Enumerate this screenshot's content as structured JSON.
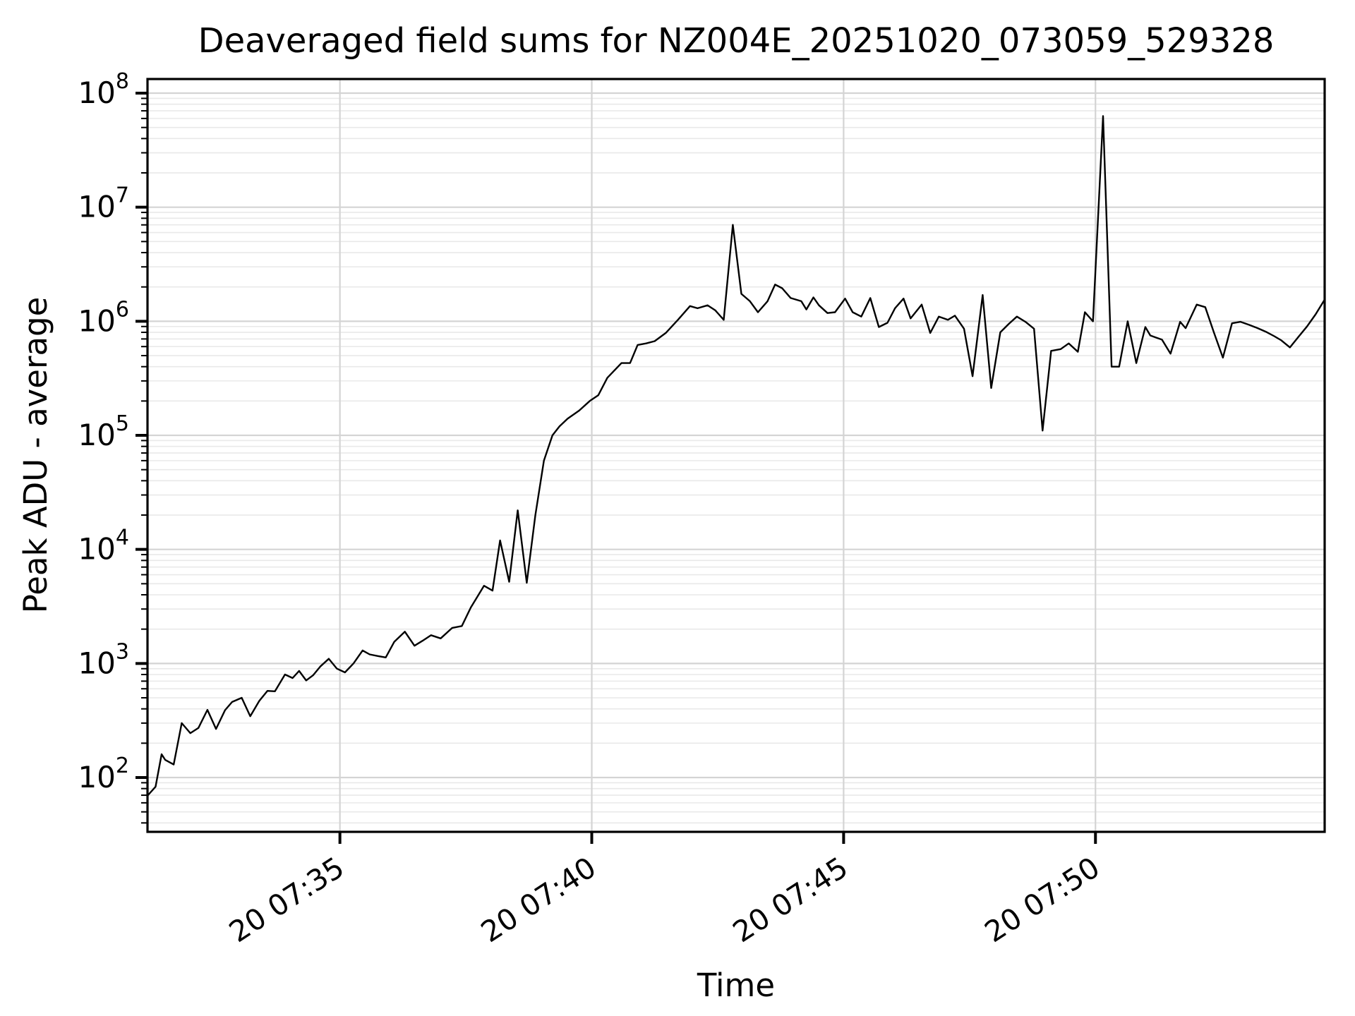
{
  "chart_data": {
    "type": "line",
    "title": "Deaveraged field sums for NZ004E_20251020_073059_529328",
    "xlabel": "Time",
    "ylabel": "Peak ADU - average",
    "legend_position": "none",
    "grid": {
      "major": true,
      "minor": true,
      "major_color": "#d4d4d4",
      "minor_color": "#e9e9e9"
    },
    "line_color": "#000000",
    "background_color": "#ffffff",
    "spine_color": "#000000",
    "x_axis": {
      "unit": "minutes after 07:30 (day 20)",
      "range": [
        1.18,
        24.55
      ],
      "ticks": [
        {
          "value": 5,
          "label": "20 07:35"
        },
        {
          "value": 10,
          "label": "20 07:40"
        },
        {
          "value": 15,
          "label": "20 07:45"
        },
        {
          "value": 20,
          "label": "20 07:50"
        }
      ]
    },
    "y_axis": {
      "scale": "log",
      "range": [
        33.4,
        133000000
      ],
      "ticks": [
        {
          "value": 100,
          "base": "10",
          "exp": "2"
        },
        {
          "value": 1000,
          "base": "10",
          "exp": "3"
        },
        {
          "value": 10000,
          "base": "10",
          "exp": "4"
        },
        {
          "value": 100000,
          "base": "10",
          "exp": "5"
        },
        {
          "value": 1000000,
          "base": "10",
          "exp": "6"
        },
        {
          "value": 10000000,
          "base": "10",
          "exp": "7"
        },
        {
          "value": 100000000,
          "base": "10",
          "exp": "8"
        }
      ]
    },
    "series": [
      {
        "name": "field sums",
        "points": [
          [
            1.19,
            70
          ],
          [
            1.34,
            83
          ],
          [
            1.46,
            160
          ],
          [
            1.53,
            143
          ],
          [
            1.7,
            130
          ],
          [
            1.86,
            300
          ],
          [
            2.03,
            245
          ],
          [
            2.19,
            272
          ],
          [
            2.37,
            392
          ],
          [
            2.54,
            267
          ],
          [
            2.72,
            390
          ],
          [
            2.86,
            460
          ],
          [
            3.05,
            500
          ],
          [
            3.22,
            345
          ],
          [
            3.4,
            470
          ],
          [
            3.56,
            575
          ],
          [
            3.71,
            570
          ],
          [
            3.91,
            800
          ],
          [
            4.06,
            745
          ],
          [
            4.19,
            860
          ],
          [
            4.33,
            710
          ],
          [
            4.47,
            790
          ],
          [
            4.61,
            940
          ],
          [
            4.78,
            1100
          ],
          [
            4.94,
            900
          ],
          [
            5.1,
            835
          ],
          [
            5.27,
            1000
          ],
          [
            5.45,
            1300
          ],
          [
            5.59,
            1200
          ],
          [
            5.76,
            1160
          ],
          [
            5.91,
            1130
          ],
          [
            6.08,
            1550
          ],
          [
            6.29,
            1900
          ],
          [
            6.48,
            1430
          ],
          [
            6.64,
            1580
          ],
          [
            6.81,
            1770
          ],
          [
            7.0,
            1660
          ],
          [
            7.23,
            2050
          ],
          [
            7.42,
            2130
          ],
          [
            7.6,
            3100
          ],
          [
            7.69,
            3600
          ],
          [
            7.86,
            4800
          ],
          [
            8.03,
            4350
          ],
          [
            8.18,
            12000
          ],
          [
            8.36,
            5200
          ],
          [
            8.53,
            22000
          ],
          [
            8.71,
            5100
          ],
          [
            8.88,
            20000
          ],
          [
            9.05,
            60000
          ],
          [
            9.22,
            100000
          ],
          [
            9.36,
            120000
          ],
          [
            9.52,
            140000
          ],
          [
            9.75,
            165000
          ],
          [
            9.96,
            200000
          ],
          [
            10.13,
            225000
          ],
          [
            10.31,
            320000
          ],
          [
            10.59,
            430000
          ],
          [
            10.76,
            430000
          ],
          [
            10.91,
            620000
          ],
          [
            11.08,
            640000
          ],
          [
            11.25,
            670000
          ],
          [
            11.47,
            790000
          ],
          [
            11.71,
            1030000
          ],
          [
            11.95,
            1360000
          ],
          [
            12.1,
            1300000
          ],
          [
            12.3,
            1380000
          ],
          [
            12.45,
            1250000
          ],
          [
            12.62,
            1030000
          ],
          [
            12.8,
            7000000
          ],
          [
            12.97,
            1740000
          ],
          [
            13.14,
            1500000
          ],
          [
            13.3,
            1200000
          ],
          [
            13.49,
            1500000
          ],
          [
            13.64,
            2100000
          ],
          [
            13.78,
            1950000
          ],
          [
            13.95,
            1600000
          ],
          [
            14.16,
            1500000
          ],
          [
            14.26,
            1270000
          ],
          [
            14.4,
            1620000
          ],
          [
            14.51,
            1380000
          ],
          [
            14.68,
            1180000
          ],
          [
            14.83,
            1200000
          ],
          [
            15.03,
            1580000
          ],
          [
            15.18,
            1200000
          ],
          [
            15.35,
            1100000
          ],
          [
            15.53,
            1600000
          ],
          [
            15.7,
            890000
          ],
          [
            15.87,
            970000
          ],
          [
            16.02,
            1300000
          ],
          [
            16.19,
            1580000
          ],
          [
            16.33,
            1060000
          ],
          [
            16.55,
            1400000
          ],
          [
            16.72,
            790000
          ],
          [
            16.89,
            1100000
          ],
          [
            17.07,
            1030000
          ],
          [
            17.21,
            1120000
          ],
          [
            17.39,
            860000
          ],
          [
            17.56,
            330000
          ],
          [
            17.76,
            1700000
          ],
          [
            17.93,
            260000
          ],
          [
            18.11,
            800000
          ],
          [
            18.28,
            950000
          ],
          [
            18.44,
            1100000
          ],
          [
            18.61,
            990000
          ],
          [
            18.78,
            860000
          ],
          [
            18.95,
            110000
          ],
          [
            19.12,
            550000
          ],
          [
            19.31,
            570000
          ],
          [
            19.47,
            640000
          ],
          [
            19.65,
            540000
          ],
          [
            19.79,
            1200000
          ],
          [
            19.95,
            1000000
          ],
          [
            20.15,
            63000000
          ],
          [
            20.32,
            400000
          ],
          [
            20.47,
            400000
          ],
          [
            20.64,
            1000000
          ],
          [
            20.81,
            430000
          ],
          [
            20.99,
            890000
          ],
          [
            21.09,
            750000
          ],
          [
            21.2,
            720000
          ],
          [
            21.32,
            690000
          ],
          [
            21.49,
            520000
          ],
          [
            21.68,
            990000
          ],
          [
            21.79,
            870000
          ],
          [
            22.01,
            1400000
          ],
          [
            22.18,
            1330000
          ],
          [
            22.35,
            800000
          ],
          [
            22.53,
            480000
          ],
          [
            22.71,
            960000
          ],
          [
            22.88,
            990000
          ],
          [
            23.05,
            930000
          ],
          [
            23.22,
            870000
          ],
          [
            23.38,
            810000
          ],
          [
            23.55,
            740000
          ],
          [
            23.69,
            680000
          ],
          [
            23.86,
            590000
          ],
          [
            24.03,
            730000
          ],
          [
            24.2,
            900000
          ],
          [
            24.37,
            1150000
          ],
          [
            24.55,
            1550000
          ]
        ]
      }
    ]
  }
}
